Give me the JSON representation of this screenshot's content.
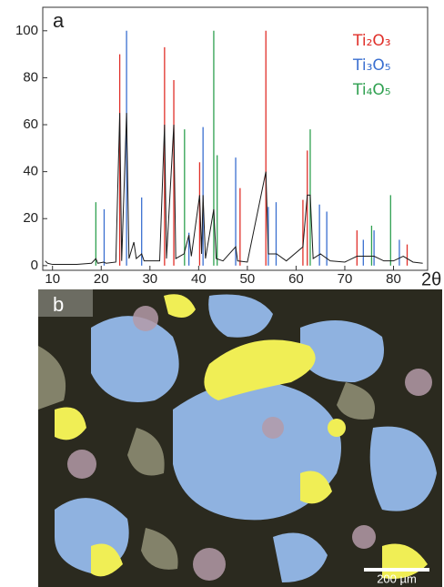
{
  "chart_data": {
    "type": "line",
    "panel_label": "a",
    "x_label": "2θ",
    "xlim": [
      8,
      87
    ],
    "ylim": [
      -2,
      110
    ],
    "xticks": [
      10,
      20,
      30,
      40,
      50,
      60,
      70,
      80
    ],
    "yticks": [
      0,
      20,
      40,
      60,
      80,
      100
    ],
    "legend": "upper right",
    "series": [
      {
        "style": "line",
        "color": "#1a1a1a",
        "x": [
          8.5,
          9,
          10,
          12,
          15,
          18,
          18.9,
          19.3,
          20.5,
          21,
          23,
          23.8,
          24.2,
          25.2,
          25.7,
          26.7,
          27.2,
          28.3,
          28.8,
          30,
          32,
          33,
          33.4,
          34.9,
          35.3,
          37,
          38,
          38.5,
          40.2,
          40.6,
          40.9,
          41.4,
          43.1,
          43.6,
          45,
          47.6,
          48,
          50,
          53.8,
          54.3,
          56,
          58,
          61.4,
          62.3,
          62.9,
          63.5,
          65,
          67,
          70,
          72.5,
          74,
          76,
          78,
          80,
          82,
          84,
          86
        ],
        "values": [
          2,
          1,
          0.5,
          0.5,
          0.5,
          1,
          3,
          1,
          1.5,
          1,
          1.5,
          65,
          2,
          65,
          3,
          10,
          3,
          5,
          2,
          2,
          2,
          60,
          3,
          60,
          3,
          5,
          13,
          4,
          30,
          5,
          30,
          3,
          24,
          3,
          2,
          8,
          2,
          1.5,
          40,
          5,
          5,
          2,
          8,
          30,
          30,
          3,
          5,
          2,
          1.5,
          4,
          4,
          4,
          2,
          2,
          4,
          1.5,
          1
        ]
      },
      {
        "style": "stick",
        "name": "Ti₂O₃",
        "color": "#e0302a",
        "x": [
          23.8,
          33.0,
          34.9,
          40.2,
          48.5,
          53.8,
          61.4,
          62.3,
          72.5,
          82.8
        ],
        "values": [
          90,
          93,
          79,
          44,
          33,
          100,
          28,
          49,
          15,
          9
        ]
      },
      {
        "style": "stick",
        "name": "Ti₃O₅",
        "color": "#3a6fd0",
        "x": [
          20.6,
          25.2,
          28.3,
          38.0,
          40.9,
          47.6,
          54.3,
          55.9,
          64.8,
          66.3,
          73.8,
          76.0,
          81.2
        ],
        "values": [
          24,
          100,
          29,
          14,
          59,
          46,
          25,
          27,
          26,
          23,
          11,
          15,
          11
        ]
      },
      {
        "style": "stick",
        "name": "Ti₄O₅",
        "color": "#2fa050",
        "x": [
          18.9,
          37.1,
          43.1,
          43.8,
          62.9,
          75.5,
          79.4
        ],
        "values": [
          27,
          58,
          100,
          47,
          58,
          17,
          30
        ]
      }
    ]
  },
  "micrograph": {
    "panel_label": "b",
    "scale_bar_label": "200 µm"
  }
}
